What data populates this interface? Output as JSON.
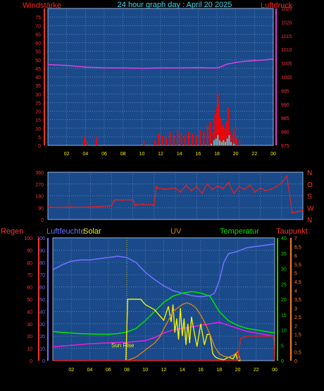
{
  "title": "24 hour graph day : April 20 2025",
  "colors": {
    "background": "#000000",
    "plot": "#1a4a8a",
    "grid": "#6f8fbf",
    "wind_label": "#ff2020",
    "pressure": "#e040e0",
    "gust": "#ff0000",
    "wind_avg": "#30d0e0",
    "x_ticks": "#f0f000",
    "direction": "#e02020",
    "humidity": "#7070ff",
    "solar": "#f0f000",
    "uv": "#d88010",
    "temperature": "#00e000",
    "dewpoint": "#e020e0",
    "rain": "#e02020",
    "taupunkt_label": "#ff3030",
    "regen_label": "#ff3030"
  },
  "chart_data": [
    {
      "type": "line",
      "labels": {
        "left": "Windstärke",
        "right": "Luftdruck"
      },
      "x_ticks": [
        "02",
        "04",
        "06",
        "08",
        "10",
        "12",
        "14",
        "16",
        "18",
        "20",
        "22",
        "00"
      ],
      "xlim": [
        0,
        24
      ],
      "y_left_ticks": [
        "0",
        "5",
        "10",
        "15",
        "20",
        "25",
        "30",
        "35",
        "40",
        "45",
        "50",
        "55",
        "60",
        "65",
        "70",
        "75"
      ],
      "y_left_lim": [
        0,
        80
      ],
      "y_right_ticks": [
        "975",
        "980",
        "985",
        "990",
        "995",
        "1000",
        "1005",
        "1010",
        "1015",
        "1020",
        "1025"
      ],
      "y_right_lim": [
        975,
        1025
      ],
      "series": [
        {
          "key": "pressure",
          "axis": "right",
          "x": [
            0,
            2,
            4,
            6,
            8,
            10,
            12,
            14,
            16,
            17,
            18,
            18.5,
            19,
            20,
            21,
            22,
            23,
            24
          ],
          "y": [
            1004.5,
            1004.2,
            1003.6,
            1003.3,
            1003.3,
            1003.2,
            1003.3,
            1003.3,
            1003.4,
            1003.3,
            1003.3,
            1003.8,
            1004.6,
            1005.3,
            1005.7,
            1006,
            1006.2,
            1006.5
          ]
        },
        {
          "key": "gust",
          "kind": "bars",
          "axis": "left",
          "x": [
            3.9,
            4.2,
            5.2,
            10.2,
            11.4,
            11.8,
            12.2,
            12.6,
            13,
            13.4,
            13.8,
            14.2,
            14.6,
            15,
            15.4,
            15.8,
            16.2,
            16.6,
            17,
            17.3,
            17.6,
            17.8,
            18,
            18.1,
            18.2,
            18.4,
            18.6,
            18.8,
            19,
            19.2,
            19.4,
            19.6,
            19.8,
            20.1,
            20.4
          ],
          "y": [
            5,
            2,
            5,
            3,
            3,
            7,
            6,
            5,
            8,
            6,
            9,
            7,
            6,
            8,
            7,
            6,
            9,
            8,
            12,
            14,
            8,
            18,
            22,
            30,
            24,
            16,
            12,
            10,
            14,
            22,
            8,
            6,
            10,
            4,
            3
          ]
        },
        {
          "key": "wind_avg",
          "kind": "bars",
          "axis": "left",
          "x": [
            17.4,
            17.7,
            17.9,
            18.1,
            18.3,
            18.5,
            18.7,
            18.9,
            19.1,
            19.3,
            19.5,
            19.8
          ],
          "y": [
            1,
            3,
            4,
            6,
            3,
            2,
            3,
            2,
            4,
            6,
            2,
            1
          ]
        }
      ]
    },
    {
      "type": "scatter",
      "labels": {
        "right": [
          "N",
          "W",
          "S",
          "O",
          "N"
        ]
      },
      "y_left_ticks": [
        "0",
        "90",
        "180",
        "270",
        "360"
      ],
      "ylim": [
        0,
        360
      ],
      "series": [
        {
          "key": "direction",
          "x": [
            0,
            1,
            2,
            3,
            4,
            5,
            6,
            6.2,
            6.3,
            7,
            8,
            8.2,
            8.3,
            9,
            10,
            10.2,
            10.3,
            11,
            12,
            12.5,
            13,
            13.5,
            14,
            14.5,
            15,
            15.5,
            16,
            16.5,
            17,
            17.5,
            18,
            18.5,
            19,
            19.5,
            20,
            20.5,
            21,
            21.5,
            22,
            22.5,
            23,
            23.5,
            24
          ],
          "y": [
            95,
            92,
            95,
            93,
            96,
            100,
            105,
            140,
            150,
            148,
            150,
            110,
            112,
            115,
            112,
            250,
            240,
            230,
            240,
            210,
            260,
            220,
            250,
            200,
            270,
            230,
            255,
            235,
            280,
            200,
            250,
            230,
            260,
            210,
            240,
            220,
            230,
            250,
            280,
            330,
            50,
            60,
            70
          ]
        }
      ]
    },
    {
      "type": "line",
      "labels": {
        "regen": "Regen",
        "humidity": "Luftfeuchte",
        "solar": "Solar",
        "uv": "UV",
        "temperature": "Temperatur",
        "dewpoint": "Taupunkt",
        "sunrise": "Sun Rise"
      },
      "x_ticks": [
        "02",
        "04",
        "06",
        "08",
        "10",
        "12",
        "14",
        "16",
        "18",
        "20",
        "22",
        "00"
      ],
      "xlim": [
        0,
        24
      ],
      "y_rain_ticks": [
        "0",
        "10",
        "20",
        "30",
        "40",
        "50",
        "60",
        "70",
        "80",
        "90",
        "100"
      ],
      "y_rain_lim": [
        0,
        100
      ],
      "y_temp_ticks": [
        "0",
        "5",
        "10",
        "15",
        "20",
        "25",
        "30",
        "35",
        "40"
      ],
      "y_temp_lim": [
        0,
        40
      ],
      "y_uv_ticks": [
        "0",
        "0,5",
        "1",
        "1,5",
        "2",
        "2,5",
        "3",
        "3,5",
        "4",
        "4,5",
        "5",
        "5,5",
        "6",
        "6,5",
        "7"
      ],
      "y_uv_lim": [
        0,
        7
      ],
      "series": [
        {
          "key": "humidity",
          "axis": "rain",
          "x": [
            0,
            1,
            2,
            3,
            4,
            5,
            6,
            7,
            8,
            9,
            10,
            11,
            12,
            13,
            14,
            15,
            16,
            17,
            17.5,
            18,
            18.5,
            19,
            20,
            21,
            22,
            23,
            24
          ],
          "y": [
            74,
            78,
            81,
            82,
            82,
            83,
            84,
            85,
            84,
            80,
            72,
            66,
            61,
            57,
            55,
            53,
            52,
            53,
            55,
            65,
            80,
            87,
            89,
            92,
            93,
            94,
            95
          ]
        },
        {
          "key": "temperature",
          "axis": "temp",
          "x": [
            0,
            1,
            2,
            3,
            4,
            5,
            6,
            7,
            8,
            9,
            10,
            11,
            12,
            13,
            14,
            15,
            16,
            17,
            18,
            19,
            20,
            21,
            22,
            23,
            24
          ],
          "y": [
            9.5,
            9.2,
            9,
            8.8,
            8.7,
            8.6,
            8.6,
            8.8,
            9.3,
            10.5,
            13,
            16,
            19,
            21,
            22,
            22.5,
            22,
            21,
            16,
            13,
            11.5,
            10.5,
            10,
            9.5,
            9
          ]
        },
        {
          "key": "dewpoint",
          "axis": "temp",
          "x": [
            0,
            2,
            4,
            6,
            8,
            10,
            11,
            12,
            13,
            14,
            15,
            16,
            17,
            18,
            19,
            20,
            21,
            22,
            23,
            24
          ],
          "y": [
            4.5,
            5,
            5.5,
            5.8,
            6,
            6.5,
            7.5,
            9,
            10,
            10.5,
            11,
            11.5,
            12,
            12.5,
            11.5,
            10.5,
            9.5,
            9,
            8.5,
            8
          ]
        },
        {
          "key": "solar",
          "axis": "uv",
          "x": [
            7.9,
            8.1,
            8.3,
            9.1,
            9.5,
            10,
            11,
            11.5,
            12,
            12.5,
            12.8,
            13,
            13.2,
            13.4,
            13.6,
            13.8,
            14,
            14.2,
            14.4,
            14.6,
            14.8,
            15,
            15.3,
            15.6,
            16,
            16.4,
            16.7,
            17,
            17.3,
            17.6,
            18,
            18.5,
            19,
            19.5,
            19.8,
            20,
            20.3
          ],
          "y": [
            0,
            3.5,
            3.5,
            3.5,
            3.5,
            3.2,
            2.9,
            2.6,
            2.3,
            3.1,
            2.2,
            3.2,
            1.6,
            2.4,
            1.2,
            3,
            1.4,
            2.4,
            0.9,
            2.1,
            1,
            2.5,
            1.6,
            0.8,
            2.1,
            0.9,
            1.5,
            1.5,
            0.4,
            0.2,
            0.1,
            0.05,
            0.2,
            0.1,
            0.4,
            0,
            0
          ]
        },
        {
          "key": "uv",
          "axis": "uv",
          "x": [
            8,
            9,
            10,
            11,
            11.5,
            12,
            12.5,
            13,
            13.5,
            14,
            14.5,
            15,
            15.5,
            16,
            16.5,
            17,
            17.5,
            18,
            18.5,
            19,
            19.5,
            20,
            20.3
          ],
          "y": [
            0,
            0.2,
            0.6,
            1,
            1.3,
            1.8,
            2.3,
            2.8,
            3,
            3.2,
            3.3,
            3.2,
            3,
            2.6,
            2.1,
            1.5,
            0.8,
            0.4,
            0.25,
            0.2,
            0.3,
            0.5,
            0
          ]
        },
        {
          "key": "rain",
          "axis": "rain",
          "x": [
            0,
            19.5,
            20,
            20.3,
            21,
            22,
            23,
            23.9,
            24
          ],
          "y": [
            0,
            0,
            0,
            18,
            20,
            20,
            20,
            20,
            0
          ]
        }
      ]
    }
  ]
}
